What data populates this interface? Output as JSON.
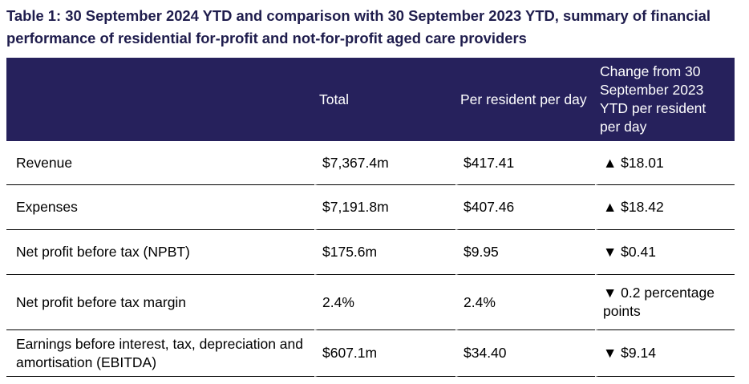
{
  "header": {
    "title": "Table 1: 30 September 2024 YTD and comparison with 30 September 2023 YTD, summary of financial performance of residential for-profit and not-for-profit aged care providers"
  },
  "table": {
    "columns": [
      "",
      "Total",
      "Per resident per day",
      "Change from 30 September 2023 YTD per resident per day"
    ],
    "rows": [
      [
        "Revenue",
        "$7,367.4m",
        "$417.41",
        "▲ $18.01"
      ],
      [
        "Expenses",
        "$7,191.8m",
        "$407.46",
        "▲ $18.42"
      ],
      [
        "Net profit before tax (NPBT)",
        "$175.6m",
        "$9.95",
        "▼ $0.41"
      ],
      [
        "Net profit before tax margin",
        "2.4%",
        "2.4%",
        "▼ 0.2 percentage points"
      ],
      [
        "Earnings before interest, tax, depreciation and amortisation (EBITDA)",
        "$607.1m",
        "$34.40",
        "▼ $9.14"
      ]
    ]
  }
}
